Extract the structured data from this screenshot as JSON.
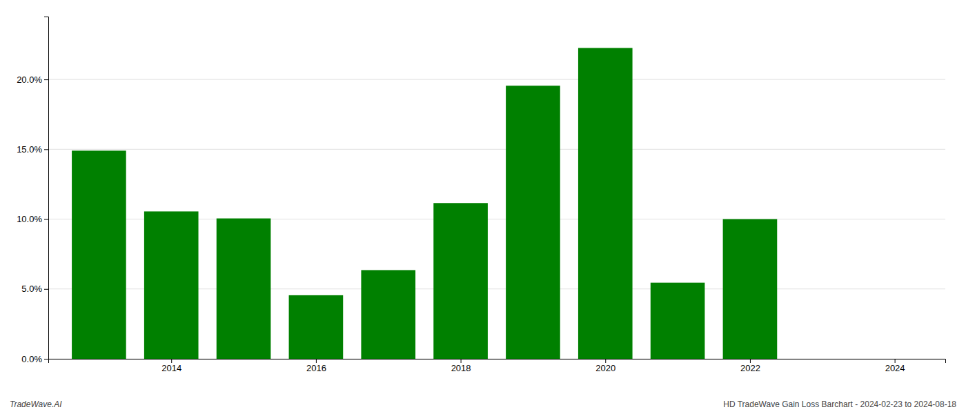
{
  "chart_data": {
    "type": "bar",
    "x": [
      2013,
      2014,
      2015,
      2016,
      2017,
      2018,
      2019,
      2020,
      2021,
      2022,
      2023
    ],
    "values": [
      0.149,
      0.1055,
      0.1005,
      0.0455,
      0.0635,
      0.1115,
      0.1955,
      0.2225,
      0.0545,
      0.1,
      0.0
    ],
    "color": "#008000",
    "xlim": [
      2012.3,
      2024.7
    ],
    "xticks": [
      2014,
      2016,
      2018,
      2020,
      2022,
      2024
    ],
    "ylim": [
      0,
      0.245
    ],
    "yticks": [
      {
        "value": 0.0,
        "label": "0.0%"
      },
      {
        "value": 0.05,
        "label": "5.0%"
      },
      {
        "value": 0.1,
        "label": "10.0%"
      },
      {
        "value": 0.15,
        "label": "15.0%"
      },
      {
        "value": 0.2,
        "label": "20.0%"
      }
    ],
    "grid": true,
    "annotations": [
      "TradeWave.AI",
      "HD TradeWave Gain Loss Barchart - 2024-02-23 to 2024-08-18"
    ]
  }
}
